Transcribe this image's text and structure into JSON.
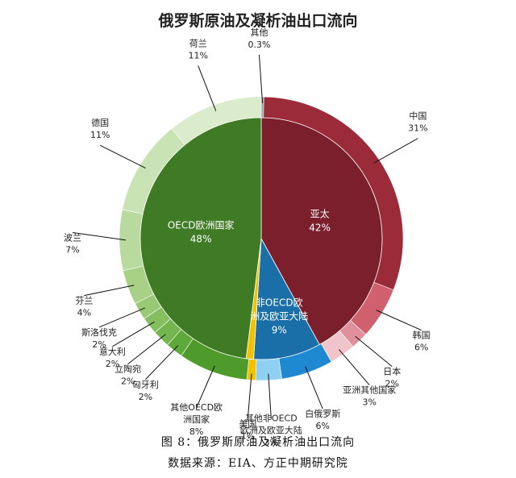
{
  "chart_data": {
    "type": "pie",
    "title": "俄罗斯原油及凝析油出口流向",
    "inner_ring": [
      {
        "label": "亚太",
        "value": 42,
        "value_label": "42%",
        "color": "#7a1f2b"
      },
      {
        "label": "非OECD欧洲及欧亚大陆",
        "value": 9,
        "value_label": "9%",
        "color": "#1a6fa8"
      },
      {
        "label": "美国",
        "value": 1,
        "value_label": "",
        "color": "#f2c200"
      },
      {
        "label": "OECD欧洲国家",
        "value": 48,
        "value_label": "48%",
        "color": "#3f7a24"
      }
    ],
    "outer_ring": [
      {
        "label": "其他",
        "value": 0.3,
        "value_label": "0.3%",
        "color": "#9a9a9a"
      },
      {
        "label": "中国",
        "value": 31,
        "value_label": "31%",
        "color": "#9c2b3a"
      },
      {
        "label": "韩国",
        "value": 6,
        "value_label": "6%",
        "color": "#d0606e"
      },
      {
        "label": "日本",
        "value": 2,
        "value_label": "2%",
        "color": "#e0909a"
      },
      {
        "label": "亚洲其他国家",
        "value": 3,
        "value_label": "3%",
        "color": "#f0c4ca"
      },
      {
        "label": "白俄罗斯",
        "value": 6,
        "value_label": "6%",
        "color": "#1e88d0"
      },
      {
        "label": "其他非OECD欧洲及欧亚大陆",
        "value": 3,
        "value_label": "3%",
        "color": "#8ed0f2"
      },
      {
        "label": "美国",
        "value": 1,
        "value_label": "1%",
        "color": "#f2c200"
      },
      {
        "label": "其他OECD欧洲国家",
        "value": 8,
        "value_label": "8%",
        "color": "#4e9a2a"
      },
      {
        "label": "匈牙利",
        "value": 2,
        "value_label": "2%",
        "color": "#5fa83a"
      },
      {
        "label": "立陶宛",
        "value": 2,
        "value_label": "2%",
        "color": "#74b54f"
      },
      {
        "label": "意大利",
        "value": 2,
        "value_label": "2%",
        "color": "#86bf62"
      },
      {
        "label": "斯洛伐克",
        "value": 2,
        "value_label": "2%",
        "color": "#98c974"
      },
      {
        "label": "芬兰",
        "value": 4,
        "value_label": "4%",
        "color": "#a8d187"
      },
      {
        "label": "波兰",
        "value": 7,
        "value_label": "7%",
        "color": "#b9da9e"
      },
      {
        "label": "德国",
        "value": 11,
        "value_label": "11%",
        "color": "#c9e3b4"
      },
      {
        "label": "荷兰",
        "value": 11,
        "value_label": "11%",
        "color": "#daeccb"
      }
    ]
  },
  "caption": {
    "figure": "图 8：俄罗斯原油及凝析油出口流向",
    "source": "数据来源：EIA、方正中期研究院"
  }
}
